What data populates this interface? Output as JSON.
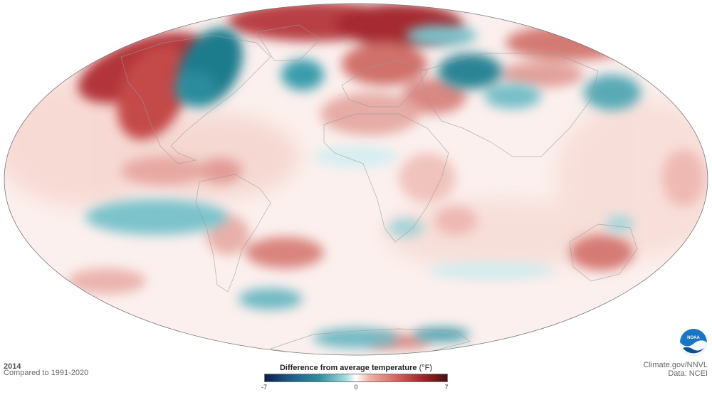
{
  "map": {
    "year": "2014",
    "subtitle": "Compared to 1991-2020",
    "projection": "Mollweide",
    "credit_line1": "Climate.gov/NNVL",
    "credit_line2": "Data: NCEI",
    "logo_text": "NOAA"
  },
  "legend": {
    "title": "Difference from average temperature",
    "unit": "(°F)",
    "min_label": "-7",
    "mid_label": "0",
    "max_label": "7",
    "range": [
      -7,
      7
    ],
    "colors": {
      "cold_extreme": "#0b1f4f",
      "cold": "#2f8f9f",
      "neutral": "#ffffff",
      "warm": "#d46560",
      "warm_extreme": "#4f0d12"
    }
  }
}
